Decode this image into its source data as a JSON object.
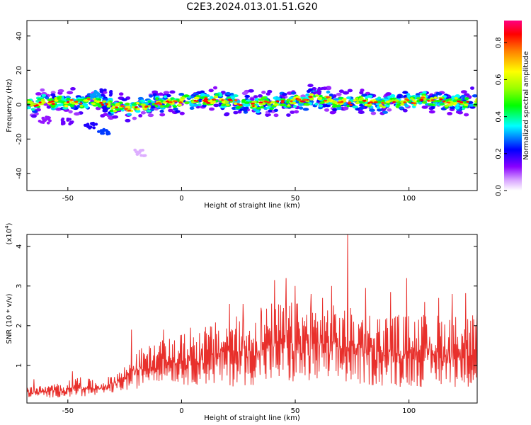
{
  "title": "C2E3.2024.013.01.51.G20",
  "chart_data": [
    {
      "type": "heatmap",
      "xlabel": "Height of straight line (km)",
      "ylabel": "Frequency (Hz)",
      "xlim": [
        -68,
        130
      ],
      "ylim": [
        -50,
        49
      ],
      "x_ticks": [
        -50,
        0,
        50,
        100
      ],
      "y_ticks": [
        -40,
        -20,
        0,
        20,
        40
      ],
      "colorbar": {
        "label": "Normalized spectral amplitude",
        "range": [
          0.0,
          0.92
        ],
        "ticks": [
          0.0,
          0.2,
          0.4,
          0.6,
          0.8
        ],
        "tick_labels": [
          "0.0",
          "0.2",
          "0.4",
          "0.6",
          "0.8"
        ]
      },
      "band_center": [
        [
          -65,
          1
        ],
        [
          -55,
          2
        ],
        [
          -45,
          1
        ],
        [
          -38,
          2
        ],
        [
          -30,
          -1
        ],
        [
          -20,
          -2
        ],
        [
          -10,
          1
        ],
        [
          0,
          2
        ],
        [
          10,
          3
        ],
        [
          20,
          2
        ],
        [
          30,
          0
        ],
        [
          40,
          1
        ],
        [
          50,
          2
        ],
        [
          60,
          4
        ],
        [
          70,
          1
        ],
        [
          80,
          2
        ],
        [
          90,
          1
        ],
        [
          100,
          2
        ],
        [
          110,
          3
        ],
        [
          120,
          1
        ],
        [
          130,
          2
        ]
      ],
      "side_features": [
        {
          "x": -38,
          "y": 6,
          "amplitude": 0.3
        },
        {
          "x": -33,
          "y": 7,
          "amplitude": 0.2
        },
        {
          "x": -34,
          "y": -16,
          "amplitude": 0.25
        },
        {
          "x": -40,
          "y": -12,
          "amplitude": 0.2
        },
        {
          "x": -50,
          "y": -10,
          "amplitude": 0.15
        },
        {
          "x": -60,
          "y": -9,
          "amplitude": 0.12
        },
        {
          "x": -18,
          "y": -28,
          "amplitude": 0.05
        },
        {
          "x": 60,
          "y": 8,
          "amplitude": 0.15
        }
      ]
    },
    {
      "type": "line",
      "xlabel": "Height of straight line (km)",
      "ylabel": "SNR (10 * v/v)",
      "y_multiplier_label": "(x10",
      "y_multiplier_exp": "4",
      "y_multiplier_close": ")",
      "xlim": [
        -68,
        130
      ],
      "ylim": [
        0.05,
        4.3
      ],
      "x_ticks": [
        -50,
        0,
        50,
        100
      ],
      "y_ticks": [
        1,
        2,
        3,
        4
      ],
      "line_color": "#e8302c",
      "series": [
        {
          "envelope": [
            [
              -68,
              0.2,
              0.45
            ],
            [
              -60,
              0.18,
              0.5
            ],
            [
              -50,
              0.2,
              0.6
            ],
            [
              -45,
              0.22,
              0.75
            ],
            [
              -40,
              0.2,
              0.65
            ],
            [
              -35,
              0.25,
              0.6
            ],
            [
              -30,
              0.3,
              0.8
            ],
            [
              -25,
              0.35,
              1.0
            ],
            [
              -20,
              0.4,
              1.4
            ],
            [
              -15,
              0.55,
              1.5
            ],
            [
              -10,
              0.6,
              1.6
            ],
            [
              -5,
              0.6,
              1.7
            ],
            [
              0,
              0.5,
              1.8
            ],
            [
              10,
              0.5,
              2.0
            ],
            [
              20,
              0.45,
              2.2
            ],
            [
              30,
              0.5,
              2.3
            ],
            [
              40,
              0.5,
              2.6
            ],
            [
              50,
              0.5,
              2.6
            ],
            [
              60,
              0.5,
              2.6
            ],
            [
              70,
              0.5,
              2.5
            ],
            [
              80,
              0.5,
              2.4
            ],
            [
              90,
              0.45,
              2.3
            ],
            [
              100,
              0.45,
              2.3
            ],
            [
              110,
              0.45,
              2.3
            ],
            [
              120,
              0.45,
              2.3
            ],
            [
              130,
              0.45,
              2.3
            ]
          ],
          "peaks": [
            [
              -65,
              0.65
            ],
            [
              -48,
              0.85
            ],
            [
              -22,
              1.9
            ],
            [
              -8,
              1.9
            ],
            [
              4,
              1.95
            ],
            [
              21,
              2.55
            ],
            [
              27,
              2.55
            ],
            [
              35,
              2.45
            ],
            [
              41,
              3.15
            ],
            [
              46,
              3.2
            ],
            [
              50,
              3.0
            ],
            [
              57,
              2.8
            ],
            [
              62,
              2.7
            ],
            [
              66,
              3.0
            ],
            [
              73,
              4.3
            ],
            [
              81,
              2.95
            ],
            [
              92,
              2.85
            ],
            [
              99,
              3.2
            ],
            [
              107,
              2.6
            ],
            [
              113,
              2.7
            ],
            [
              119,
              2.8
            ],
            [
              125,
              2.82
            ],
            [
              130,
              2.3
            ]
          ]
        }
      ]
    }
  ]
}
